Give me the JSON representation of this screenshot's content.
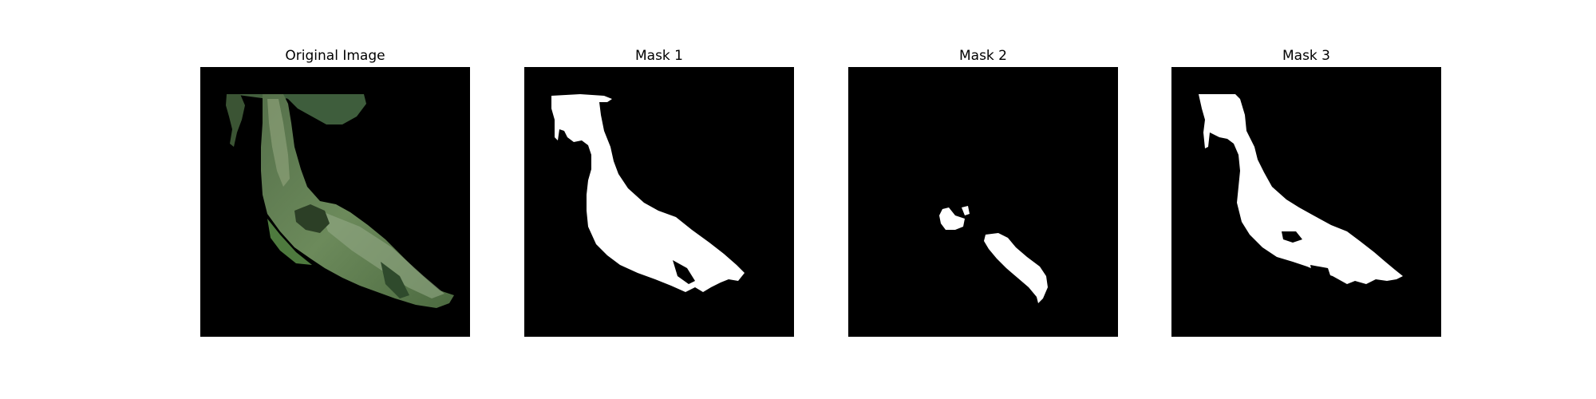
{
  "panels": [
    {
      "title": "Original Image"
    },
    {
      "title": "Mask 1"
    },
    {
      "title": "Mask 2"
    },
    {
      "title": "Mask 3"
    }
  ],
  "colors": {
    "background": "#000000",
    "mask": "#ffffff",
    "leaf_dark": "#3b5a34",
    "leaf_mid": "#5f7e4f",
    "leaf_light": "#8da37a",
    "leaf_shadow": "#2a3f27"
  }
}
